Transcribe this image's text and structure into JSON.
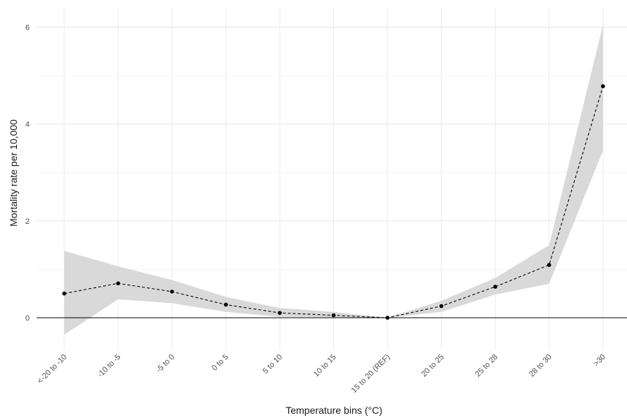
{
  "chart_data": {
    "type": "line",
    "title": "",
    "xlabel": "Temperature bins (°C)",
    "ylabel": "Mortality rate per 10,000",
    "categories": [
      "<-20 to -10",
      "-10 to -5",
      "-5 to 0",
      "0 to 5",
      "5 to 10",
      "10 to 15",
      "15 to 20 (REF)",
      "20 to 25",
      "25 to 28",
      "28 to 30",
      ">30"
    ],
    "series": [
      {
        "values": [
          0.5,
          0.71,
          0.54,
          0.27,
          0.1,
          0.05,
          0.0,
          0.24,
          0.64,
          1.09,
          4.78
        ],
        "lower": [
          -0.35,
          0.38,
          0.3,
          0.12,
          0.02,
          0.01,
          0.0,
          0.12,
          0.48,
          0.7,
          3.45
        ],
        "upper": [
          1.38,
          1.06,
          0.78,
          0.43,
          0.2,
          0.12,
          0.0,
          0.35,
          0.82,
          1.5,
          6.05
        ],
        "line_style": "dashed",
        "color": "#000000",
        "ci_color": "#d9d9d9"
      }
    ],
    "yticks": [
      0,
      2,
      4,
      6
    ],
    "ylim": [
      -0.65,
      6.35
    ],
    "reference_line": 0,
    "grid": true,
    "legend": "none"
  }
}
